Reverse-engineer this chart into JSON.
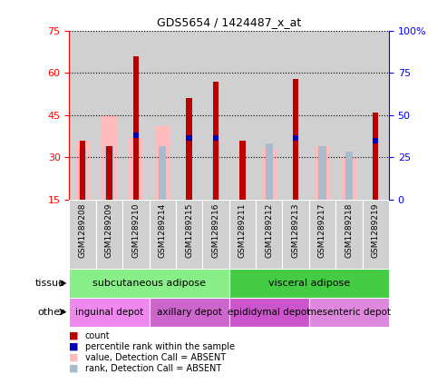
{
  "title": "GDS5654 / 1424487_x_at",
  "samples": [
    "GSM1289208",
    "GSM1289209",
    "GSM1289210",
    "GSM1289214",
    "GSM1289215",
    "GSM1289216",
    "GSM1289211",
    "GSM1289212",
    "GSM1289213",
    "GSM1289217",
    "GSM1289218",
    "GSM1289219"
  ],
  "red_values": [
    36,
    34,
    66,
    0,
    51,
    57,
    36,
    0,
    58,
    0,
    0,
    46
  ],
  "blue_values": [
    0,
    0,
    37,
    0,
    36,
    36,
    0,
    0,
    36,
    0,
    0,
    35
  ],
  "pink_values": [
    36,
    45,
    37,
    41,
    0,
    0,
    0,
    33,
    0,
    34,
    30,
    0
  ],
  "lightblue_values": [
    33,
    34,
    0,
    34,
    0,
    36,
    0,
    35,
    0,
    34,
    32,
    0
  ],
  "ylim_left": [
    15,
    75
  ],
  "ylim_right": [
    0,
    100
  ],
  "yticks_left": [
    15,
    30,
    45,
    60,
    75
  ],
  "yticks_right": [
    0,
    25,
    50,
    75,
    100
  ],
  "ytick_labels_right": [
    "0",
    "25",
    "50",
    "75",
    "100%"
  ],
  "tissue_groups": [
    {
      "label": "subcutaneous adipose",
      "start": 0,
      "end": 6,
      "color": "#88ee88"
    },
    {
      "label": "visceral adipose",
      "start": 6,
      "end": 12,
      "color": "#44cc44"
    }
  ],
  "other_groups": [
    {
      "label": "inguinal depot",
      "start": 0,
      "end": 3,
      "color": "#ee88ee"
    },
    {
      "label": "axillary depot",
      "start": 3,
      "end": 6,
      "color": "#cc66cc"
    },
    {
      "label": "epididymal depot",
      "start": 6,
      "end": 9,
      "color": "#cc55cc"
    },
    {
      "label": "mesenteric depot",
      "start": 9,
      "end": 12,
      "color": "#dd88dd"
    }
  ],
  "color_red": "#bb0000",
  "color_blue": "#0000bb",
  "color_pink": "#ffbbbb",
  "color_lightblue": "#aabbcc",
  "plot_bg": "#ffffff",
  "grey_col": "#d0d0d0",
  "spine_color": "#aaaaaa"
}
